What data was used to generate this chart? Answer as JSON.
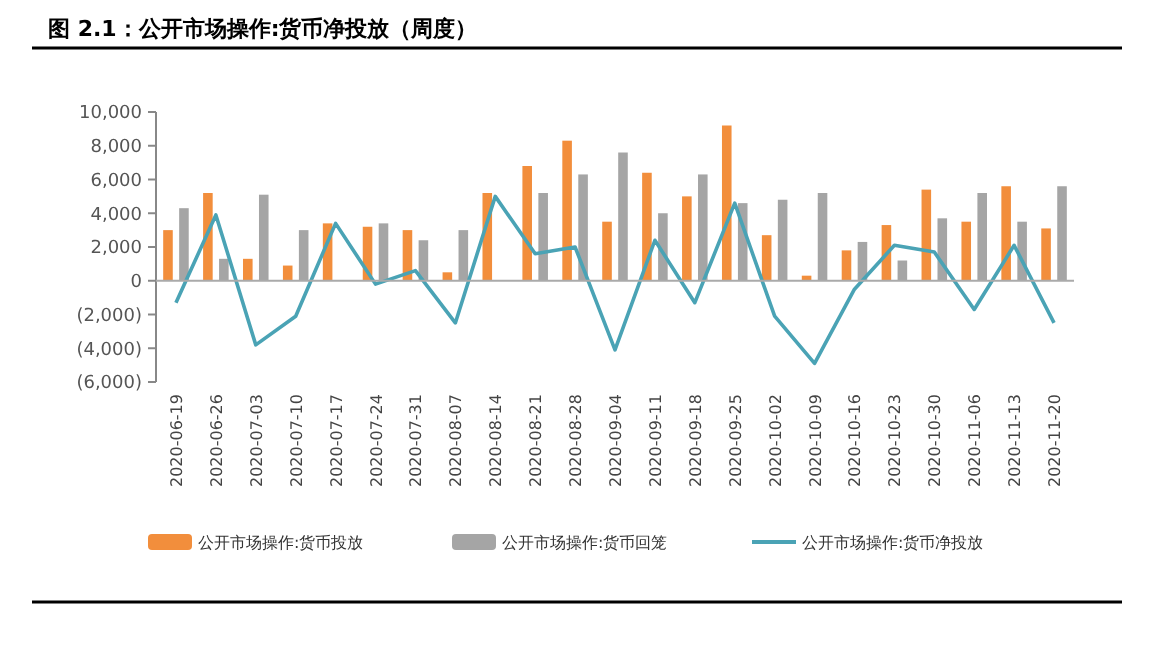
{
  "chart_data": {
    "type": "bar",
    "title": "图 2.1：公开市场操作:货币净投放（周度）",
    "categories": [
      "2020-06-19",
      "2020-06-26",
      "2020-07-03",
      "2020-07-10",
      "2020-07-17",
      "2020-07-24",
      "2020-07-31",
      "2020-08-07",
      "2020-08-14",
      "2020-08-21",
      "2020-08-28",
      "2020-09-04",
      "2020-09-11",
      "2020-09-18",
      "2020-09-25",
      "2020-10-02",
      "2020-10-09",
      "2020-10-16",
      "2020-10-23",
      "2020-10-30",
      "2020-11-06",
      "2020-11-13",
      "2020-11-20"
    ],
    "series": [
      {
        "name": "公开市场操作:货币投放",
        "color": "#f28e3c",
        "values": [
          3000,
          5200,
          1300,
          900,
          3400,
          3200,
          3000,
          500,
          5200,
          6800,
          8300,
          3500,
          6400,
          5000,
          9200,
          2700,
          300,
          1800,
          3300,
          5400,
          3500,
          5600,
          3100
        ]
      },
      {
        "name": "公开市场操作:货币回笼",
        "color": "#a5a5a5",
        "values": [
          4300,
          1300,
          5100,
          3000,
          0,
          3400,
          2400,
          3000,
          null,
          5200,
          6300,
          7600,
          4000,
          6300,
          4600,
          4800,
          5200,
          2300,
          1200,
          3700,
          5200,
          3500,
          5600
        ]
      },
      {
        "name": "公开市场操作:货币净投放",
        "type": "line",
        "color": "#4aa3b5",
        "values": [
          -1300,
          3900,
          -3800,
          -2100,
          3400,
          -200,
          600,
          -2500,
          5000,
          1600,
          2000,
          -4100,
          2400,
          -1300,
          4600,
          -2100,
          -4900,
          -500,
          2100,
          1700,
          -1700,
          2100,
          -2500
        ]
      }
    ],
    "ylim": [
      -6000,
      10000
    ],
    "yticks": [
      {
        "value": -6000,
        "label": "(6,000)"
      },
      {
        "value": -4000,
        "label": "(4,000)"
      },
      {
        "value": -2000,
        "label": "(2,000)"
      },
      0,
      {
        "value": 2000,
        "label": "2,000"
      },
      {
        "value": 4000,
        "label": "4,000"
      },
      {
        "value": 6000,
        "label": "6,000"
      },
      {
        "value": 8000,
        "label": "8,000"
      },
      {
        "value": 10000,
        "label": "10,000"
      }
    ],
    "legend": "bottom",
    "marker": "none",
    "line_style": "solid"
  }
}
